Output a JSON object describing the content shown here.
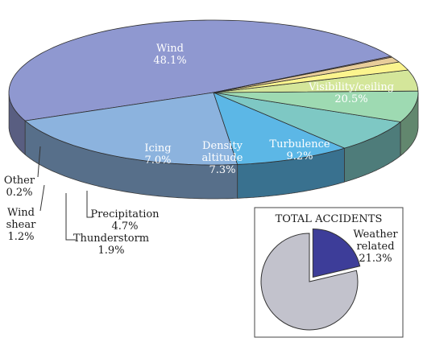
{
  "chart_data": [
    {
      "type": "pie",
      "style": "3d-exploded",
      "unit": "%",
      "slices": [
        {
          "label": "Wind",
          "value": 48.1,
          "color": "#8f98d0"
        },
        {
          "label": "Visibility/ceiling",
          "value": 20.5,
          "color": "#8cb3de"
        },
        {
          "label": "Turbulence",
          "value": 9.2,
          "color": "#5cb7e6"
        },
        {
          "label": "Density\naltitude",
          "value": 7.3,
          "color": "#7ec8c4"
        },
        {
          "label": "Icing",
          "value": 7.0,
          "color": "#9edab2"
        },
        {
          "label": "Precipitation",
          "value": 4.7,
          "color": "#d4e69a"
        },
        {
          "label": "Thunderstorm",
          "value": 1.9,
          "color": "#fbf48e"
        },
        {
          "label": "Wind\nshear",
          "value": 1.2,
          "color": "#e8cd9a"
        },
        {
          "label": "Other",
          "value": 0.2,
          "color": "#b08a84"
        }
      ]
    },
    {
      "type": "pie",
      "title": "TOTAL ACCIDENTS",
      "unit": "%",
      "slices": [
        {
          "label": "Weather\nrelated",
          "value": 21.3,
          "color": "#3d3d99",
          "exploded": true
        },
        {
          "label": "",
          "value": 78.7,
          "color": "#c2c2cc"
        }
      ]
    }
  ]
}
